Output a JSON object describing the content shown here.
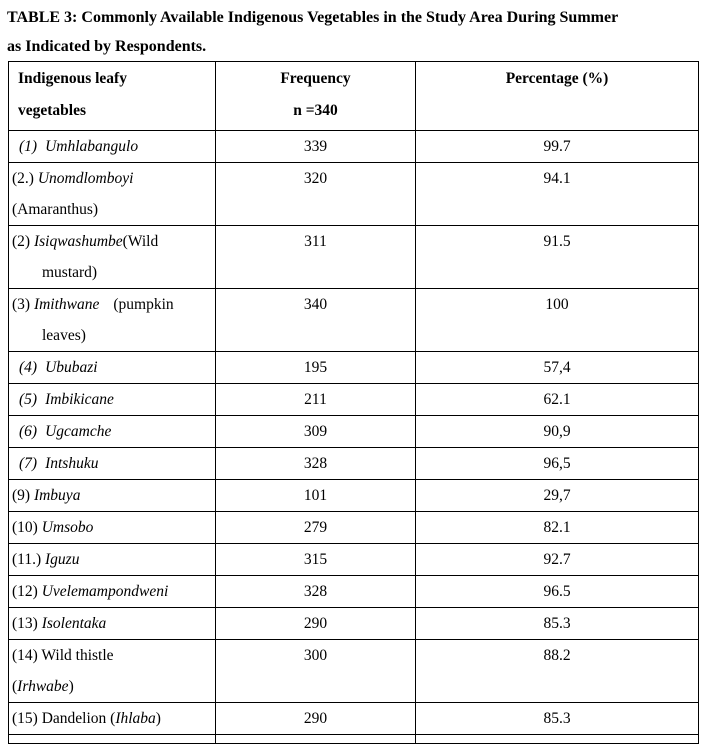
{
  "title": {
    "line1": "TABLE 3: Commonly Available Indigenous Vegetables in the Study Area During Summer",
    "line2": "as Indicated by Respondents."
  },
  "table": {
    "headers": {
      "col1": [
        "Indigenous leafy",
        "vegetables"
      ],
      "col2": [
        "Frequency",
        "n =340"
      ],
      "col3": [
        "Percentage (%)"
      ]
    },
    "rows": [
      {
        "name_lines": [
          {
            "ind": 7,
            "seg": [
              {
                "t": "(1)",
                "i": true
              },
              {
                "t": "Umhlabangulo",
                "i": true,
                "gap": 8
              }
            ]
          }
        ],
        "frequency": "339",
        "percentage": "99.7"
      },
      {
        "name_lines": [
          {
            "seg": [
              {
                "t": "(2.) "
              },
              {
                "t": "Unomdlomboyi",
                "i": true
              }
            ]
          },
          {
            "seg": [
              {
                "t": "(Amaranthus)"
              }
            ]
          }
        ],
        "frequency": "320",
        "percentage": "94.1"
      },
      {
        "name_lines": [
          {
            "seg": [
              {
                "t": "(2) "
              },
              {
                "t": "Isiqwashumbe",
                "i": true
              },
              {
                "t": "(Wild"
              }
            ]
          },
          {
            "ind": 30,
            "seg": [
              {
                "t": "mustard)"
              }
            ]
          }
        ],
        "frequency": "311",
        "percentage": "91.5"
      },
      {
        "name_lines": [
          {
            "seg": [
              {
                "t": "(3) "
              },
              {
                "t": "Imithwane",
                "i": true
              },
              {
                "t": "(pumpkin",
                "gap": 14
              }
            ]
          },
          {
            "ind": 30,
            "seg": [
              {
                "t": "leaves)"
              }
            ]
          }
        ],
        "frequency": "340",
        "percentage": "100"
      },
      {
        "name_lines": [
          {
            "ind": 7,
            "seg": [
              {
                "t": "(4)",
                "i": true
              },
              {
                "t": "Ububazi",
                "i": true,
                "gap": 8
              }
            ]
          }
        ],
        "frequency": "195",
        "percentage": "57,4"
      },
      {
        "name_lines": [
          {
            "ind": 7,
            "seg": [
              {
                "t": "(5)",
                "i": true
              },
              {
                "t": "Imbikicane",
                "i": true,
                "gap": 8
              }
            ]
          }
        ],
        "frequency": "211",
        "percentage": "62.1"
      },
      {
        "name_lines": [
          {
            "ind": 7,
            "seg": [
              {
                "t": "(6)",
                "i": true
              },
              {
                "t": "Ugcamche",
                "i": true,
                "gap": 8
              }
            ]
          }
        ],
        "frequency": "309",
        "percentage": "90,9"
      },
      {
        "name_lines": [
          {
            "ind": 7,
            "seg": [
              {
                "t": "(7)",
                "i": true
              },
              {
                "t": "Intshuku",
                "i": true,
                "gap": 8
              }
            ]
          }
        ],
        "frequency": "328",
        "percentage": "96,5"
      },
      {
        "name_lines": [
          {
            "seg": [
              {
                "t": "(9) "
              },
              {
                "t": "Imbuya",
                "i": true
              }
            ]
          }
        ],
        "frequency": "101",
        "percentage": "29,7"
      },
      {
        "name_lines": [
          {
            "seg": [
              {
                "t": "(10) "
              },
              {
                "t": "Umsobo",
                "i": true
              }
            ]
          }
        ],
        "frequency": "279",
        "percentage": "82.1"
      },
      {
        "name_lines": [
          {
            "seg": [
              {
                "t": "(11.) "
              },
              {
                "t": "Iguzu",
                "i": true
              }
            ]
          }
        ],
        "frequency": "315",
        "percentage": "92.7"
      },
      {
        "name_lines": [
          {
            "seg": [
              {
                "t": "(12) "
              },
              {
                "t": "Uvelemampondweni",
                "i": true
              }
            ]
          }
        ],
        "frequency": "328",
        "percentage": "96.5"
      },
      {
        "name_lines": [
          {
            "seg": [
              {
                "t": "(13) "
              },
              {
                "t": "Isolentaka",
                "i": true
              }
            ]
          }
        ],
        "frequency": "290",
        "percentage": "85.3"
      },
      {
        "name_lines": [
          {
            "seg": [
              {
                "t": "(14) Wild thistle"
              }
            ]
          },
          {
            "seg": [
              {
                "t": "("
              },
              {
                "t": "Irhwabe",
                "i": true
              },
              {
                "t": ")"
              }
            ]
          }
        ],
        "frequency": "300",
        "percentage": "88.2"
      },
      {
        "name_lines": [
          {
            "seg": [
              {
                "t": "(15) Dandelion ("
              },
              {
                "t": "Ihlaba",
                "i": true
              },
              {
                "t": ")"
              }
            ]
          }
        ],
        "frequency": "290",
        "percentage": "85.3"
      }
    ]
  }
}
